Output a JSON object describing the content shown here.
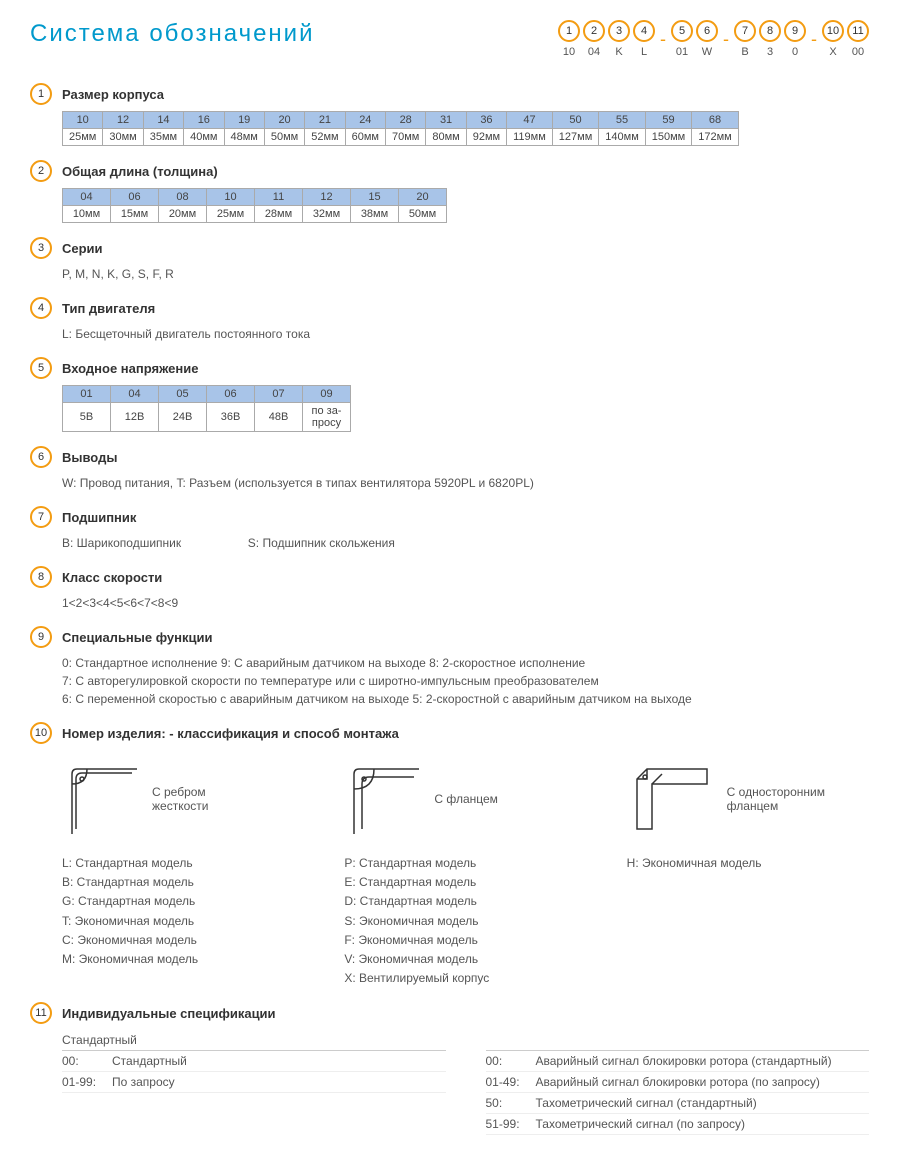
{
  "title": "Система обозначений",
  "code_positions": [
    {
      "num": "1",
      "val": "10"
    },
    {
      "num": "2",
      "val": "04"
    },
    {
      "num": "3",
      "val": "K"
    },
    {
      "num": "4",
      "val": "L"
    },
    {
      "dash": true
    },
    {
      "num": "5",
      "val": "01"
    },
    {
      "num": "6",
      "val": "W"
    },
    {
      "dash": true
    },
    {
      "num": "7",
      "val": "B"
    },
    {
      "num": "8",
      "val": "3"
    },
    {
      "num": "9",
      "val": "0"
    },
    {
      "dash": true
    },
    {
      "num": "10",
      "val": "X"
    },
    {
      "num": "11",
      "val": "00"
    }
  ],
  "sections": {
    "s1": {
      "num": "1",
      "title": "Размер корпуса"
    },
    "s2": {
      "num": "2",
      "title": "Общая длина (толщина)"
    },
    "s3": {
      "num": "3",
      "title": "Серии",
      "body": "P, M, N, K, G, S, F, R"
    },
    "s4": {
      "num": "4",
      "title": "Тип двигателя",
      "body": "L: Бесщеточный двигатель постоянного тока"
    },
    "s5": {
      "num": "5",
      "title": "Входное напряжение"
    },
    "s6": {
      "num": "6",
      "title": "Выводы",
      "body": "W: Провод питания, T: Разъем (используется в типах вентилятора  5920PL и 6820PL)"
    },
    "s7": {
      "num": "7",
      "title": "Подшипник",
      "body_a": "B: Шарикоподшипник",
      "body_b": "S: Подшипник скольжения"
    },
    "s8": {
      "num": "8",
      "title": "Класс скорости",
      "body": "1<2<3<4<5<6<7<8<9"
    },
    "s9": {
      "num": "9",
      "title": "Специальные функции",
      "lines": [
        "0: Стандартное исполнение   9: С аварийным датчиком на выходе   8: 2-скоростное исполнение",
        "7: С авторегулировкой скорости по температуре или с широтно-импульсным преобразователем",
        "6: С переменной скоростью с аварийным датчиком на выходе   5: 2-скоростной с аварийным датчиком на выходе"
      ]
    },
    "s10": {
      "num": "10",
      "title": "Номер изделия: - классификация  и способ монтажа"
    },
    "s11": {
      "num": "11",
      "title": "Индивидуальные спецификации"
    }
  },
  "table1": {
    "header": [
      "10",
      "12",
      "14",
      "16",
      "19",
      "20",
      "21",
      "24",
      "28",
      "31",
      "36",
      "47",
      "50",
      "55",
      "59",
      "68"
    ],
    "row": [
      "25мм",
      "30мм",
      "35мм",
      "40мм",
      "48мм",
      "50мм",
      "52мм",
      "60мм",
      "70мм",
      "80мм",
      "92мм",
      "119мм",
      "127мм",
      "140мм",
      "150мм",
      "172мм"
    ]
  },
  "table2": {
    "header": [
      "04",
      "06",
      "08",
      "10",
      "11",
      "12",
      "15",
      "20"
    ],
    "row": [
      "10мм",
      "15мм",
      "20мм",
      "25мм",
      "28мм",
      "32мм",
      "38мм",
      "50мм"
    ]
  },
  "table5": {
    "header": [
      "01",
      "04",
      "05",
      "06",
      "07",
      "09"
    ],
    "row": [
      "5В",
      "12В",
      "24В",
      "36В",
      "48В",
      "по за-\nпросу"
    ]
  },
  "mount": {
    "col1": {
      "label": "С ребром\nжесткости",
      "items": [
        "L:  Стандартная модель",
        "B:  Стандартная модель",
        "G:  Стандартная модель",
        "T:  Экономичная модель",
        "C:  Экономичная модель",
        "M:  Экономичная модель"
      ]
    },
    "col2": {
      "label": "С фланцем",
      "items": [
        "P:  Стандартная модель",
        "E:  Стандартная модель",
        "D:  Стандартная модель",
        "S:  Экономичная модель",
        "F:  Экономичная модель",
        "V:  Экономичная модель",
        "X:  Вентилируемый корпус"
      ]
    },
    "col3": {
      "label": "С односторонним\nфланцем",
      "items": [
        "H:  Экономичная модель"
      ]
    }
  },
  "spec": {
    "left": {
      "head": "Стандартный",
      "rows": [
        {
          "c1": "00:",
          "c2": "Стандартный"
        },
        {
          "c1": "01-99:",
          "c2": "По запросу"
        }
      ]
    },
    "right": {
      "rows": [
        {
          "c1": "00:",
          "c2": "Аварийный сигнал блокировки ротора (стандартный)"
        },
        {
          "c1": "01-49:",
          "c2": "Аварийный сигнал блокировки ротора (по запросу)"
        },
        {
          "c1": "50:",
          "c2": "Тахометрический сигнал (стандартный)"
        },
        {
          "c1": "51-99:",
          "c2": "Тахометрический сигнал (по запросу)"
        }
      ]
    }
  },
  "colors": {
    "accent": "#f39c12",
    "title": "#0099cc",
    "header_bg": "#a8c4e8"
  }
}
